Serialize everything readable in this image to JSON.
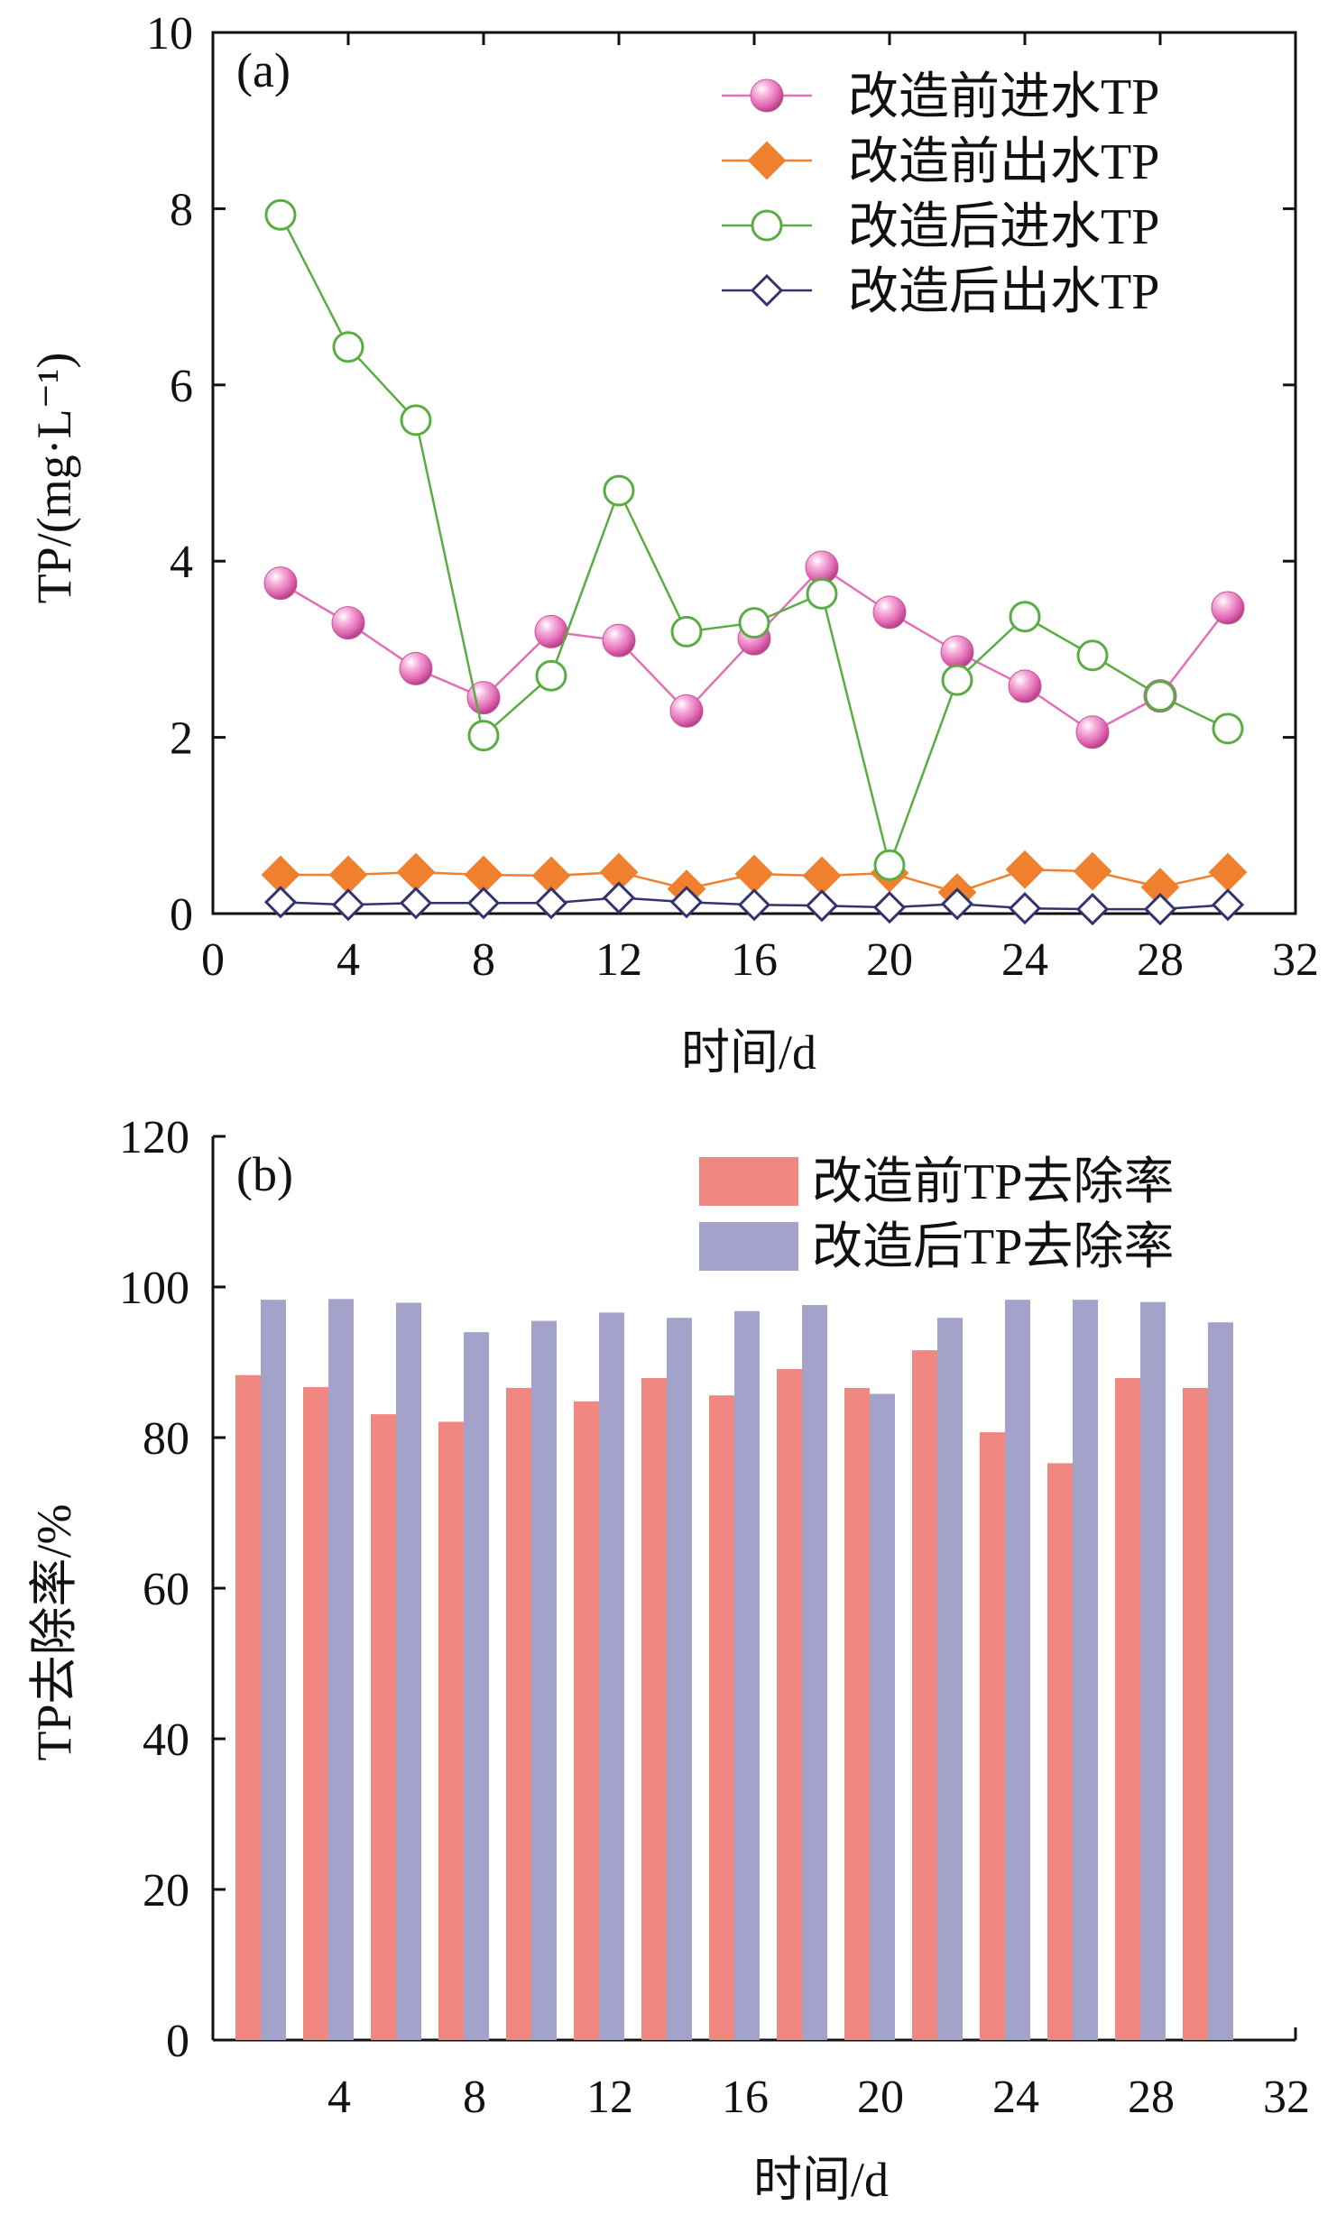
{
  "chart_data": [
    {
      "type": "line",
      "panel_label": "(a)",
      "xlabel": "时间/d",
      "ylabel": "TP/(mg·L⁻¹)",
      "xlim": [
        0,
        32
      ],
      "ylim": [
        0,
        10
      ],
      "xticks": [
        "0",
        "4",
        "8",
        "12",
        "16",
        "20",
        "24",
        "28",
        "32"
      ],
      "yticks": [
        "0",
        "2",
        "4",
        "6",
        "8",
        "10"
      ],
      "legend_position": "top-right",
      "x": [
        2,
        4,
        6,
        8,
        10,
        12,
        14,
        16,
        18,
        20,
        22,
        24,
        26,
        28,
        30
      ],
      "series": [
        {
          "name": "改造前进水TP",
          "marker": "sphere",
          "color": "#e36fb6",
          "values": [
            3.75,
            3.3,
            2.78,
            2.45,
            3.2,
            3.1,
            2.3,
            3.12,
            3.93,
            3.42,
            2.97,
            2.58,
            2.06,
            2.47,
            3.47
          ]
        },
        {
          "name": "改造前出水TP",
          "marker": "filled-diamond",
          "color": "#f07f2e",
          "values": [
            0.44,
            0.44,
            0.47,
            0.44,
            0.43,
            0.47,
            0.28,
            0.45,
            0.43,
            0.46,
            0.24,
            0.5,
            0.48,
            0.3,
            0.47
          ]
        },
        {
          "name": "改造后进水TP",
          "marker": "open-circle",
          "color": "#5aad43",
          "values": [
            7.93,
            6.43,
            5.6,
            2.02,
            2.7,
            4.8,
            3.2,
            3.3,
            3.63,
            0.55,
            2.65,
            3.37,
            2.93,
            2.47,
            2.1
          ]
        },
        {
          "name": "改造后出水TP",
          "marker": "open-diamond",
          "color": "#33336e",
          "values": [
            0.13,
            0.1,
            0.12,
            0.12,
            0.12,
            0.18,
            0.13,
            0.1,
            0.09,
            0.07,
            0.11,
            0.06,
            0.05,
            0.05,
            0.1
          ]
        }
      ]
    },
    {
      "type": "bar",
      "panel_label": "(b)",
      "xlabel": "时间/d",
      "ylabel": "TP去除率/%",
      "xlim": [
        0,
        32
      ],
      "ylim": [
        0,
        120
      ],
      "xticks": [
        "4",
        "8",
        "12",
        "16",
        "20",
        "24",
        "28",
        "32"
      ],
      "yticks": [
        "0",
        "20",
        "40",
        "60",
        "80",
        "100",
        "120"
      ],
      "legend_position": "top-right",
      "x": [
        2,
        4,
        6,
        8,
        10,
        12,
        14,
        16,
        18,
        20,
        22,
        24,
        26,
        28,
        30
      ],
      "series": [
        {
          "name": "改造前TP去除率",
          "color": "#f08781",
          "values": [
            88.3,
            86.7,
            83.1,
            82.1,
            86.6,
            84.8,
            87.9,
            85.6,
            89.1,
            86.6,
            91.6,
            80.7,
            76.6,
            87.9,
            86.6
          ]
        },
        {
          "name": "改造后TP去除率",
          "color": "#a3a2ca",
          "values": [
            98.3,
            98.4,
            97.9,
            94.0,
            95.5,
            96.6,
            95.9,
            96.8,
            97.6,
            85.8,
            95.9,
            98.3,
            98.3,
            98.0,
            95.3
          ]
        }
      ]
    }
  ]
}
